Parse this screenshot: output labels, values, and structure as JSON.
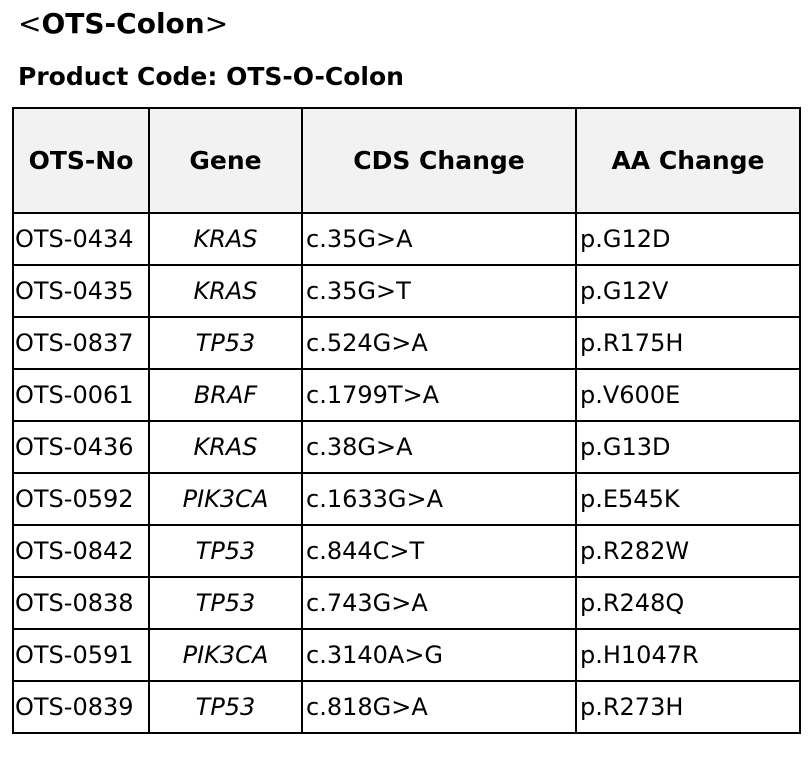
{
  "title": {
    "open": "<",
    "text": "OTS-Colon",
    "close": ">"
  },
  "subtitle": "Product Code: OTS-O-Colon",
  "table": {
    "headers": [
      "OTS-No",
      "Gene",
      "CDS Change",
      "AA Change"
    ],
    "rows": [
      [
        "OTS-0434",
        "KRAS",
        "c.35G>A",
        "p.G12D"
      ],
      [
        "OTS-0435",
        "KRAS",
        "c.35G>T",
        "p.G12V"
      ],
      [
        "OTS-0837",
        "TP53",
        "c.524G>A",
        "p.R175H"
      ],
      [
        "OTS-0061",
        "BRAF",
        "c.1799T>A",
        "p.V600E"
      ],
      [
        "OTS-0436",
        "KRAS",
        "c.38G>A",
        "p.G13D"
      ],
      [
        "OTS-0592",
        "PIK3CA",
        "c.1633G>A",
        "p.E545K"
      ],
      [
        "OTS-0842",
        "TP53",
        "c.844C>T",
        "p.R282W"
      ],
      [
        "OTS-0838",
        "TP53",
        "c.743G>A",
        "p.R248Q"
      ],
      [
        "OTS-0591",
        "PIK3CA",
        "c.3140A>G",
        "p.H1047R"
      ],
      [
        "OTS-0839",
        "TP53",
        "c.818G>A",
        "p.R273H"
      ]
    ]
  },
  "colors": {
    "header_bg": "#f2f2f2",
    "border": "#000000",
    "text": "#000000"
  }
}
